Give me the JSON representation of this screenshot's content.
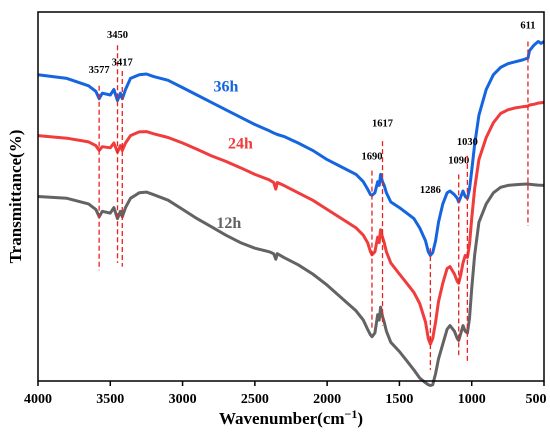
{
  "chart_data": {
    "type": "line",
    "xlabel_main": "Wavenumber(cm",
    "xlabel_sup": "−1",
    "xlabel_close": ")",
    "ylabel": "Transmittance(%)",
    "xlim": [
      4000,
      500
    ],
    "ylim": [
      0,
      100
    ],
    "x_reversed": true,
    "y_ticks_shown": false,
    "xticks": [
      "4000",
      "3500",
      "3000",
      "2500",
      "2000",
      "1500",
      "1000",
      "500"
    ],
    "grid": false,
    "series": [
      {
        "name": "36h",
        "color": "#1565e0",
        "label_x": 2700,
        "label_y": 78.5,
        "points": [
          [
            4000,
            83
          ],
          [
            3800,
            82
          ],
          [
            3650,
            80
          ],
          [
            3600,
            78.5
          ],
          [
            3577,
            76.5
          ],
          [
            3555,
            78
          ],
          [
            3500,
            77.5
          ],
          [
            3475,
            79
          ],
          [
            3450,
            76
          ],
          [
            3430,
            78
          ],
          [
            3417,
            76.5
          ],
          [
            3395,
            79
          ],
          [
            3360,
            82
          ],
          [
            3300,
            83
          ],
          [
            3250,
            83.2
          ],
          [
            3200,
            82.5
          ],
          [
            3100,
            81.5
          ],
          [
            3000,
            79.5
          ],
          [
            2900,
            77.5
          ],
          [
            2800,
            75.5
          ],
          [
            2700,
            73.5
          ],
          [
            2600,
            71.5
          ],
          [
            2500,
            69.5
          ],
          [
            2400,
            67.8
          ],
          [
            2370,
            67.2
          ],
          [
            2355,
            67
          ],
          [
            2345,
            66.8
          ],
          [
            2300,
            66.3
          ],
          [
            2200,
            64.5
          ],
          [
            2100,
            62.5
          ],
          [
            2000,
            60
          ],
          [
            1900,
            58
          ],
          [
            1800,
            56
          ],
          [
            1750,
            54
          ],
          [
            1720,
            52
          ],
          [
            1700,
            50.5
          ],
          [
            1690,
            50.3
          ],
          [
            1670,
            51
          ],
          [
            1650,
            54
          ],
          [
            1640,
            53
          ],
          [
            1630,
            56
          ],
          [
            1617,
            54
          ],
          [
            1605,
            53
          ],
          [
            1590,
            51
          ],
          [
            1560,
            48.5
          ],
          [
            1500,
            47
          ],
          [
            1450,
            45.5
          ],
          [
            1400,
            44
          ],
          [
            1360,
            41.5
          ],
          [
            1320,
            38
          ],
          [
            1300,
            35
          ],
          [
            1286,
            34
          ],
          [
            1270,
            34.8
          ],
          [
            1250,
            38
          ],
          [
            1230,
            43
          ],
          [
            1200,
            48
          ],
          [
            1170,
            51
          ],
          [
            1150,
            51.5
          ],
          [
            1120,
            50.5
          ],
          [
            1100,
            49.5
          ],
          [
            1090,
            48.5
          ],
          [
            1075,
            50
          ],
          [
            1060,
            51.5
          ],
          [
            1045,
            50
          ],
          [
            1030,
            49.5
          ],
          [
            1015,
            52
          ],
          [
            1000,
            57
          ],
          [
            980,
            64
          ],
          [
            950,
            72
          ],
          [
            900,
            79
          ],
          [
            850,
            83
          ],
          [
            800,
            85
          ],
          [
            750,
            86
          ],
          [
            700,
            86.5
          ],
          [
            650,
            87
          ],
          [
            611,
            87.5
          ],
          [
            600,
            89.5
          ],
          [
            570,
            91
          ],
          [
            540,
            92
          ],
          [
            520,
            91.5
          ],
          [
            500,
            92
          ]
        ]
      },
      {
        "name": "24h",
        "color": "#f03c3c",
        "label_x": 2600,
        "label_y": 63,
        "points": [
          [
            4000,
            66.5
          ],
          [
            3800,
            65.8
          ],
          [
            3650,
            64.8
          ],
          [
            3600,
            63.8
          ],
          [
            3577,
            62.5
          ],
          [
            3555,
            63.5
          ],
          [
            3500,
            63.2
          ],
          [
            3475,
            64.5
          ],
          [
            3450,
            62
          ],
          [
            3430,
            63.8
          ],
          [
            3417,
            62.5
          ],
          [
            3395,
            64.5
          ],
          [
            3360,
            66.5
          ],
          [
            3300,
            67.5
          ],
          [
            3250,
            67.6
          ],
          [
            3200,
            67
          ],
          [
            3100,
            66
          ],
          [
            3000,
            64.5
          ],
          [
            2900,
            62.8
          ],
          [
            2800,
            61
          ],
          [
            2700,
            59.5
          ],
          [
            2600,
            57.8
          ],
          [
            2500,
            56
          ],
          [
            2400,
            54.5
          ],
          [
            2370,
            53.8
          ],
          [
            2355,
            52
          ],
          [
            2345,
            53.8
          ],
          [
            2300,
            53
          ],
          [
            2200,
            51
          ],
          [
            2100,
            49
          ],
          [
            2000,
            46.5
          ],
          [
            1900,
            44
          ],
          [
            1800,
            41.5
          ],
          [
            1750,
            39.5
          ],
          [
            1720,
            37.5
          ],
          [
            1700,
            35
          ],
          [
            1690,
            34.2
          ],
          [
            1670,
            35
          ],
          [
            1650,
            39
          ],
          [
            1640,
            37.5
          ],
          [
            1630,
            41
          ],
          [
            1617,
            39
          ],
          [
            1605,
            37.5
          ],
          [
            1590,
            35
          ],
          [
            1560,
            32
          ],
          [
            1500,
            29
          ],
          [
            1450,
            26.5
          ],
          [
            1400,
            24
          ],
          [
            1360,
            21
          ],
          [
            1320,
            16
          ],
          [
            1300,
            11.5
          ],
          [
            1286,
            10
          ],
          [
            1270,
            11.5
          ],
          [
            1250,
            16
          ],
          [
            1230,
            21.5
          ],
          [
            1200,
            26.5
          ],
          [
            1170,
            30.5
          ],
          [
            1150,
            31
          ],
          [
            1120,
            29
          ],
          [
            1100,
            27
          ],
          [
            1090,
            26.5
          ],
          [
            1075,
            29
          ],
          [
            1060,
            32
          ],
          [
            1045,
            34
          ],
          [
            1030,
            33.5
          ],
          [
            1015,
            37
          ],
          [
            1000,
            44
          ],
          [
            980,
            52
          ],
          [
            950,
            60
          ],
          [
            900,
            66
          ],
          [
            850,
            70
          ],
          [
            800,
            72.5
          ],
          [
            750,
            73.5
          ],
          [
            700,
            74
          ],
          [
            650,
            74.3
          ],
          [
            611,
            74.5
          ],
          [
            600,
            74.8
          ],
          [
            570,
            75
          ],
          [
            540,
            75.3
          ],
          [
            500,
            75.5
          ]
        ]
      },
      {
        "name": "12h",
        "color": "#636363",
        "label_x": 2680,
        "label_y": 41.5,
        "points": [
          [
            4000,
            50
          ],
          [
            3800,
            49.5
          ],
          [
            3650,
            48
          ],
          [
            3600,
            46.5
          ],
          [
            3577,
            44.5
          ],
          [
            3555,
            46
          ],
          [
            3500,
            45.5
          ],
          [
            3475,
            47
          ],
          [
            3450,
            44
          ],
          [
            3430,
            46
          ],
          [
            3417,
            44.5
          ],
          [
            3395,
            47
          ],
          [
            3360,
            49.5
          ],
          [
            3300,
            51
          ],
          [
            3250,
            51.2
          ],
          [
            3200,
            50.5
          ],
          [
            3100,
            49
          ],
          [
            3000,
            46.5
          ],
          [
            2900,
            44
          ],
          [
            2800,
            41.8
          ],
          [
            2700,
            39.5
          ],
          [
            2600,
            37.5
          ],
          [
            2500,
            36
          ],
          [
            2400,
            35
          ],
          [
            2370,
            34.5
          ],
          [
            2355,
            33
          ],
          [
            2345,
            34.5
          ],
          [
            2300,
            33.5
          ],
          [
            2200,
            31.5
          ],
          [
            2100,
            29
          ],
          [
            2000,
            26
          ],
          [
            1900,
            22.5
          ],
          [
            1800,
            19
          ],
          [
            1750,
            16.5
          ],
          [
            1720,
            14
          ],
          [
            1700,
            12.5
          ],
          [
            1690,
            12
          ],
          [
            1670,
            13
          ],
          [
            1650,
            18
          ],
          [
            1640,
            16.5
          ],
          [
            1630,
            20
          ],
          [
            1617,
            17.5
          ],
          [
            1605,
            16
          ],
          [
            1590,
            13.5
          ],
          [
            1560,
            10.5
          ],
          [
            1500,
            8
          ],
          [
            1450,
            5.5
          ],
          [
            1400,
            3
          ],
          [
            1360,
            0.8
          ],
          [
            1320,
            -0.5
          ],
          [
            1300,
            -1
          ],
          [
            1286,
            -1.2
          ],
          [
            1270,
            -1
          ],
          [
            1250,
            2
          ],
          [
            1230,
            6
          ],
          [
            1200,
            10
          ],
          [
            1170,
            14
          ],
          [
            1150,
            15
          ],
          [
            1120,
            13.5
          ],
          [
            1100,
            11.5
          ],
          [
            1090,
            11
          ],
          [
            1075,
            13
          ],
          [
            1060,
            15
          ],
          [
            1045,
            13.5
          ],
          [
            1030,
            13
          ],
          [
            1015,
            17
          ],
          [
            1000,
            25
          ],
          [
            980,
            34
          ],
          [
            950,
            43
          ],
          [
            900,
            48
          ],
          [
            850,
            51
          ],
          [
            800,
            52.5
          ],
          [
            750,
            53
          ],
          [
            700,
            53.2
          ],
          [
            650,
            53.3
          ],
          [
            611,
            53.4
          ],
          [
            600,
            53.3
          ],
          [
            570,
            53.2
          ],
          [
            540,
            53.1
          ],
          [
            500,
            53
          ]
        ]
      }
    ],
    "peak_lines": [
      {
        "x": 3577,
        "label": "3577",
        "y_top": 80,
        "y_bottom": 30,
        "label_y": 83.5
      },
      {
        "x": 3450,
        "label": "3450",
        "y_top": 91,
        "y_bottom": 32,
        "label_y": 93
      },
      {
        "x": 3417,
        "label": "3417",
        "y_top": 84,
        "y_bottom": 31,
        "label_y": 85.5
      },
      {
        "x": 1690,
        "label": "1690",
        "y_top": 57,
        "y_bottom": 14,
        "label_y": 60
      },
      {
        "x": 1617,
        "label": "1617",
        "y_top": 65,
        "y_bottom": 15,
        "label_y": 69
      },
      {
        "x": 1286,
        "label": "1286",
        "y_top": 36,
        "y_bottom": 3,
        "label_y": 51
      },
      {
        "x": 1090,
        "label": "1090",
        "y_top": 56,
        "y_bottom": 7,
        "label_y": 59
      },
      {
        "x": 1030,
        "label": "1030",
        "y_top": 61,
        "y_bottom": 5,
        "label_y": 64
      },
      {
        "x": 611,
        "label": "611",
        "y_top": 92,
        "y_bottom": 42,
        "label_y": 95.5
      }
    ]
  }
}
